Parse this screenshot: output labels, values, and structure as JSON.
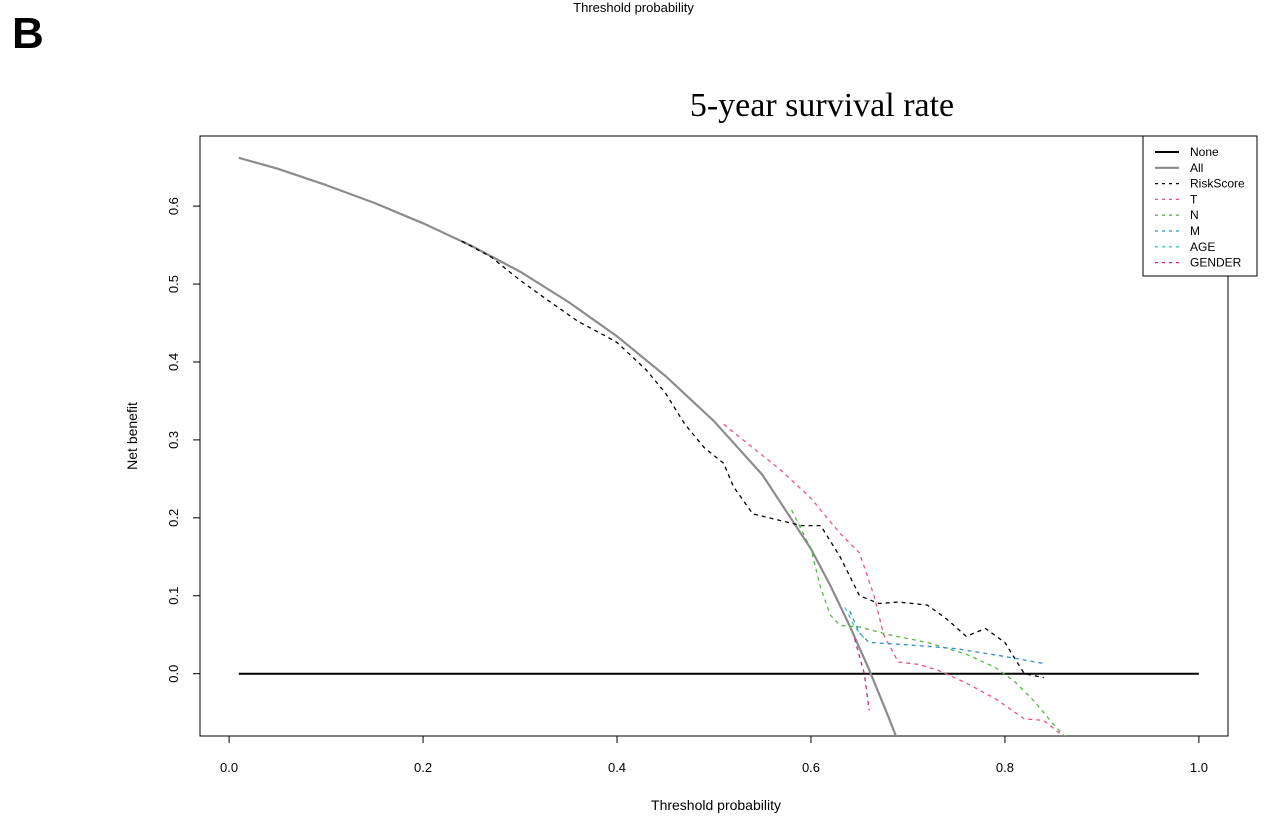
{
  "top_label": "Threshold probability",
  "panel_letter": "B",
  "chart_data": {
    "type": "line",
    "title": "5-year survival rate",
    "xlabel": "Threshold probability",
    "ylabel": "Net benefit",
    "xlim": [
      -0.03,
      1.03
    ],
    "ylim": [
      -0.08,
      0.69
    ],
    "xticks": [
      0.0,
      0.2,
      0.4,
      0.6,
      0.8,
      1.0
    ],
    "xtick_labels": [
      "0.0",
      "0.2",
      "0.4",
      "0.6",
      "0.8",
      "1.0"
    ],
    "yticks": [
      0.0,
      0.1,
      0.2,
      0.3,
      0.4,
      0.5,
      0.6
    ],
    "ytick_labels": [
      "0.0",
      "0.1",
      "0.2",
      "0.3",
      "0.4",
      "0.5",
      "0.6"
    ],
    "legend_position": "top-right",
    "series": [
      {
        "name": "None",
        "color": "#000000",
        "dash": "solid",
        "width": 2,
        "x": [
          0.01,
          1.0
        ],
        "y": [
          0.0,
          0.0
        ]
      },
      {
        "name": "All",
        "color": "#8c8c8c",
        "dash": "solid",
        "width": 2.2,
        "x": [
          0.01,
          0.05,
          0.1,
          0.15,
          0.2,
          0.25,
          0.3,
          0.35,
          0.4,
          0.45,
          0.5,
          0.55,
          0.6,
          0.62,
          0.64,
          0.66,
          0.68,
          0.69
        ],
        "y": [
          0.662,
          0.648,
          0.627,
          0.604,
          0.578,
          0.549,
          0.516,
          0.477,
          0.433,
          0.382,
          0.324,
          0.255,
          0.16,
          0.113,
          0.061,
          0.005,
          -0.056,
          -0.088
        ]
      },
      {
        "name": "RiskScore",
        "color": "#000000",
        "dash": "4,4",
        "width": 1.3,
        "x": [
          0.24,
          0.27,
          0.3,
          0.33,
          0.36,
          0.39,
          0.4,
          0.43,
          0.45,
          0.47,
          0.49,
          0.51,
          0.52,
          0.54,
          0.57,
          0.59,
          0.61,
          0.63,
          0.65,
          0.67,
          0.69,
          0.72,
          0.74,
          0.76,
          0.78,
          0.8,
          0.82,
          0.84
        ],
        "y": [
          0.555,
          0.535,
          0.505,
          0.478,
          0.452,
          0.432,
          0.425,
          0.39,
          0.36,
          0.32,
          0.29,
          0.27,
          0.24,
          0.205,
          0.196,
          0.19,
          0.19,
          0.15,
          0.1,
          0.09,
          0.092,
          0.088,
          0.07,
          0.048,
          0.058,
          0.04,
          0.0,
          -0.005
        ]
      },
      {
        "name": "T",
        "color": "#e8567a",
        "dash": "4,4",
        "width": 1.3,
        "x": [
          0.51,
          0.54,
          0.57,
          0.6,
          0.63,
          0.65,
          0.665,
          0.675,
          0.69,
          0.71,
          0.73,
          0.76,
          0.79,
          0.82,
          0.84,
          0.86
        ],
        "y": [
          0.32,
          0.29,
          0.26,
          0.225,
          0.18,
          0.155,
          0.1,
          0.05,
          0.015,
          0.012,
          0.005,
          -0.012,
          -0.032,
          -0.058,
          -0.06,
          -0.08
        ]
      },
      {
        "name": "N",
        "color": "#5ab84a",
        "dash": "4,4",
        "width": 1.3,
        "x": [
          0.58,
          0.6,
          0.61,
          0.62,
          0.63,
          0.65,
          0.68,
          0.72,
          0.76,
          0.79,
          0.81,
          0.83,
          0.85,
          0.865
        ],
        "y": [
          0.21,
          0.16,
          0.11,
          0.075,
          0.062,
          0.06,
          0.05,
          0.04,
          0.025,
          0.008,
          -0.01,
          -0.035,
          -0.065,
          -0.085
        ]
      },
      {
        "name": "M",
        "color": "#2f8fd4",
        "dash": "4,4",
        "width": 1.3,
        "x": [
          0.64,
          0.65,
          0.66,
          0.7,
          0.75,
          0.8,
          0.84
        ],
        "y": [
          0.08,
          0.052,
          0.04,
          0.037,
          0.032,
          0.022,
          0.013
        ]
      },
      {
        "name": "AGE",
        "color": "#3fc6c6",
        "dash": "4,4",
        "width": 1.3,
        "x": [
          0.635,
          0.645,
          0.655
        ],
        "y": [
          0.085,
          0.06,
          0.045
        ]
      },
      {
        "name": "GENDER",
        "color": "#c2288f",
        "dash": "4,4",
        "width": 1.3,
        "x": [
          0.645,
          0.655,
          0.66
        ],
        "y": [
          0.045,
          0.0,
          -0.047
        ]
      }
    ]
  }
}
